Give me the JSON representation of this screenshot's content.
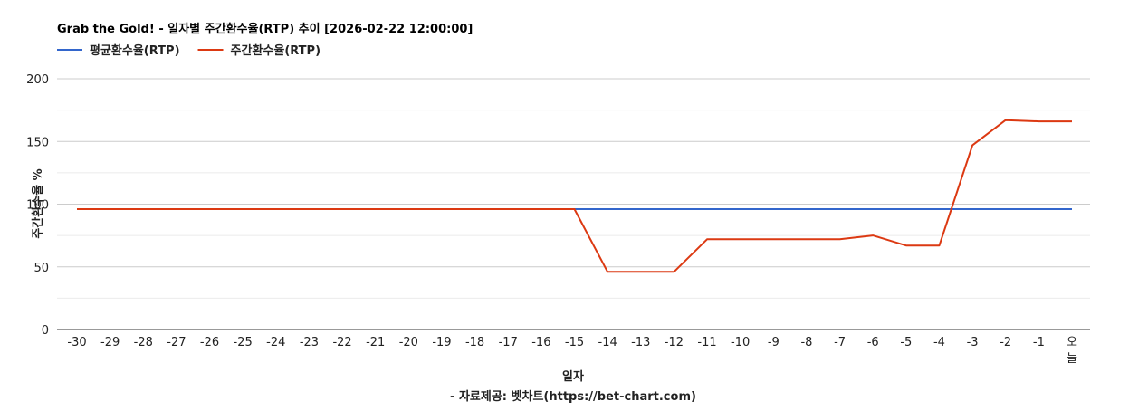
{
  "chart_data": {
    "type": "line",
    "title": "Grab the Gold! - 일자별 주간환수율(RTP) 추이 [2026-02-22 12:00:00]",
    "xlabel": "일자",
    "ylabel": "주간환수율 %",
    "source_note": "- 자료제공: 벳차트(https://bet-chart.com)",
    "ylim": [
      0,
      200
    ],
    "yticks": [
      0,
      50,
      100,
      150,
      200
    ],
    "grid": true,
    "legend_position": "top-left",
    "categories": [
      "-30",
      "-29",
      "-28",
      "-27",
      "-26",
      "-25",
      "-24",
      "-23",
      "-22",
      "-21",
      "-20",
      "-19",
      "-18",
      "-17",
      "-16",
      "-15",
      "-14",
      "-13",
      "-12",
      "-11",
      "-10",
      "-9",
      "-8",
      "-7",
      "-6",
      "-5",
      "-4",
      "-3",
      "-2",
      "-1",
      "오늘"
    ],
    "series": [
      {
        "name": "평균환수율(RTP)",
        "color": "#3366cc",
        "values": [
          96,
          96,
          96,
          96,
          96,
          96,
          96,
          96,
          96,
          96,
          96,
          96,
          96,
          96,
          96,
          96,
          96,
          96,
          96,
          96,
          96,
          96,
          96,
          96,
          96,
          96,
          96,
          96,
          96,
          96,
          96
        ]
      },
      {
        "name": "주간환수율(RTP)",
        "color": "#dc3912",
        "values": [
          96,
          96,
          96,
          96,
          96,
          96,
          96,
          96,
          96,
          96,
          96,
          96,
          96,
          96,
          96,
          96,
          46,
          46,
          46,
          72,
          72,
          72,
          72,
          72,
          75,
          67,
          67,
          147,
          167,
          166,
          166
        ]
      }
    ]
  }
}
